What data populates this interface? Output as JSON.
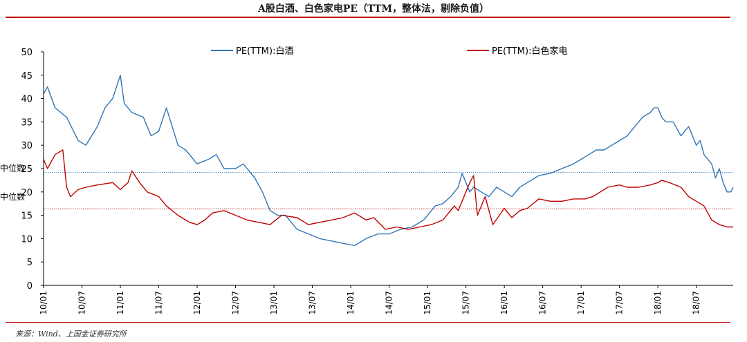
{
  "chart_data": {
    "type": "line",
    "title": "A股白酒、白色家电PE（TTM，整体法，剔除负值）",
    "source": "来源：Wind、上国金证券研究所",
    "ylim": [
      0,
      50
    ],
    "yticks": [
      0,
      5,
      10,
      15,
      20,
      25,
      30,
      35,
      40,
      45,
      50
    ],
    "xlim": [
      2010.0,
      2018.98
    ],
    "categories": [
      "10/01",
      "10/07",
      "11/01",
      "11/07",
      "12/01",
      "12/07",
      "13/01",
      "13/07",
      "14/01",
      "14/07",
      "15/01",
      "15/07",
      "16/01",
      "16/07",
      "17/01",
      "17/07",
      "18/01",
      "18/07"
    ],
    "legend_position": "top",
    "series": [
      {
        "name": "PE(TTM):白酒",
        "color": "#2e75b6",
        "median": 24.2,
        "x": [
          2010.0,
          2010.05,
          2010.15,
          2010.3,
          2010.45,
          2010.55,
          2010.7,
          2010.8,
          2010.9,
          2011.0,
          2011.05,
          2011.15,
          2011.3,
          2011.4,
          2011.5,
          2011.6,
          2011.75,
          2011.85,
          2012.0,
          2012.15,
          2012.25,
          2012.35,
          2012.5,
          2012.6,
          2012.75,
          2012.85,
          2012.95,
          2013.05,
          2013.15,
          2013.3,
          2013.45,
          2013.6,
          2013.75,
          2013.9,
          2014.05,
          2014.2,
          2014.35,
          2014.5,
          2014.65,
          2014.8,
          2014.95,
          2015.1,
          2015.2,
          2015.3,
          2015.4,
          2015.45,
          2015.5,
          2015.55,
          2015.6,
          2015.7,
          2015.8,
          2015.9,
          2016.0,
          2016.1,
          2016.2,
          2016.3,
          2016.45,
          2016.6,
          2016.75,
          2016.9,
          2017.0,
          2017.1,
          2017.2,
          2017.3,
          2017.4,
          2017.5,
          2017.6,
          2017.7,
          2017.8,
          2017.9,
          2017.95,
          2018.0,
          2018.05,
          2018.1,
          2018.2,
          2018.3,
          2018.4,
          2018.5,
          2018.55,
          2018.6,
          2018.7,
          2018.75,
          2018.8,
          2018.85,
          2018.9,
          2018.95,
          2018.98
        ],
        "values": [
          41,
          42.5,
          38,
          36,
          31,
          30,
          34,
          38,
          40,
          45,
          39,
          37,
          36,
          32,
          33,
          38,
          30,
          29,
          26,
          27,
          28,
          25,
          25,
          26,
          23,
          20,
          16,
          15,
          15,
          12,
          11,
          10,
          9.5,
          9,
          8.5,
          10,
          11,
          11,
          12,
          12.5,
          14,
          17,
          17.5,
          19,
          21,
          24,
          22,
          20,
          21,
          20,
          19,
          21,
          20,
          19,
          21,
          22,
          23.5,
          24,
          25,
          26,
          27,
          28,
          29,
          29,
          30,
          31,
          32,
          34,
          36,
          37,
          38,
          38,
          36,
          35,
          35,
          32,
          34,
          30,
          31,
          28,
          26,
          23,
          25,
          22,
          20,
          20,
          21
        ]
      },
      {
        "name": "PE(TTM):白色家电",
        "color": "#c00000",
        "median": 16.4,
        "x": [
          2010.0,
          2010.05,
          2010.15,
          2010.25,
          2010.3,
          2010.35,
          2010.45,
          2010.55,
          2010.7,
          2010.9,
          2011.0,
          2011.1,
          2011.15,
          2011.25,
          2011.35,
          2011.5,
          2011.6,
          2011.75,
          2011.9,
          2012.0,
          2012.1,
          2012.2,
          2012.35,
          2012.5,
          2012.65,
          2012.8,
          2012.95,
          2013.1,
          2013.3,
          2013.45,
          2013.6,
          2013.75,
          2013.9,
          2014.05,
          2014.2,
          2014.3,
          2014.45,
          2014.6,
          2014.75,
          2014.9,
          2015.05,
          2015.2,
          2015.3,
          2015.35,
          2015.4,
          2015.45,
          2015.5,
          2015.55,
          2015.6,
          2015.65,
          2015.75,
          2015.85,
          2016.0,
          2016.1,
          2016.2,
          2016.3,
          2016.45,
          2016.6,
          2016.75,
          2016.9,
          2017.05,
          2017.15,
          2017.25,
          2017.35,
          2017.5,
          2017.6,
          2017.75,
          2017.9,
          2018.0,
          2018.05,
          2018.15,
          2018.3,
          2018.4,
          2018.5,
          2018.6,
          2018.7,
          2018.8,
          2018.9,
          2018.98
        ],
        "values": [
          27,
          25,
          28,
          29,
          21,
          19,
          20.5,
          21,
          21.5,
          22,
          20.5,
          22,
          24.5,
          22,
          20,
          19,
          17,
          15,
          13.5,
          13,
          14,
          15.5,
          16,
          15,
          14,
          13.5,
          13,
          15,
          14.5,
          13,
          13.5,
          14,
          14.5,
          15.5,
          14,
          14.5,
          12,
          12.5,
          12,
          12.5,
          13,
          14,
          16,
          17,
          16,
          18,
          20,
          22,
          23.5,
          15,
          19,
          13,
          16.5,
          14.5,
          16,
          16.5,
          18.5,
          18,
          18,
          18.5,
          18.5,
          19,
          20,
          21,
          21.5,
          21,
          21,
          21.5,
          22,
          22.5,
          22,
          21,
          19,
          18,
          17,
          14,
          13,
          12.5,
          12.5
        ]
      }
    ],
    "median_label": "中位数"
  }
}
